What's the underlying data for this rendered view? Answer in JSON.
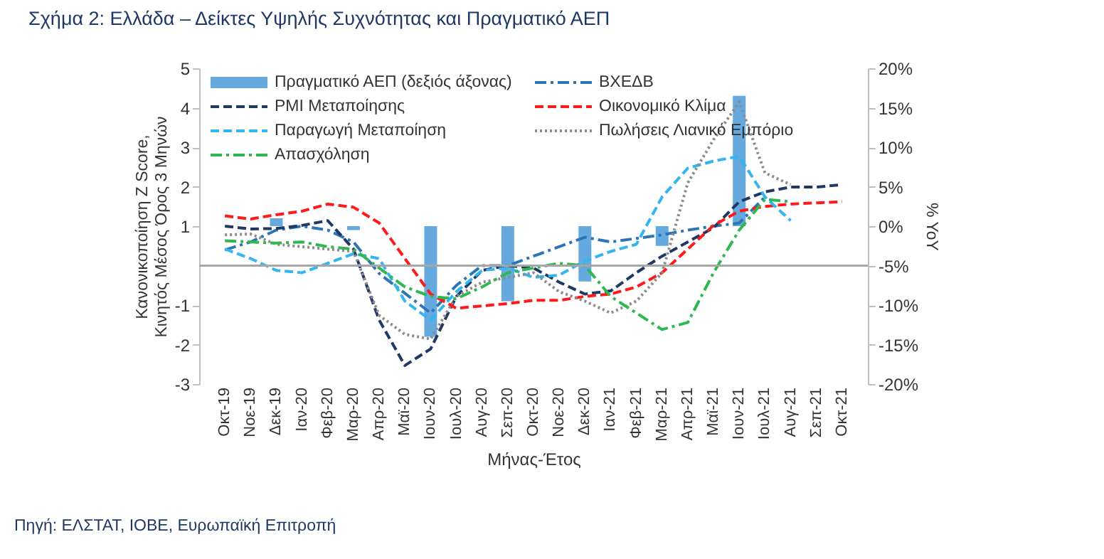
{
  "chart_data": {
    "type": "line",
    "title": "Σχήμα 2: Ελλάδα – Δείκτες Υψηλής Συχνότητας και Πραγματικό ΑΕΠ",
    "xlabel": "Μήνας-Έτος",
    "ylabel": "Κανονικοποίηση Z Score, Κινητός Μέσος Όρος 3 Μηνών",
    "y2label": "% YoY",
    "categories": [
      "Οκτ-19",
      "Νοε-19",
      "Δεκ-19",
      "Ιαν-20",
      "Φεβ-20",
      "Μαρ-20",
      "Απρ-20",
      "Μαϊ-20",
      "Ιουν-20",
      "Ιουλ-20",
      "Αυγ-20",
      "Σεπ-20",
      "Οκτ-20",
      "Νοε-20",
      "Δεκ-20",
      "Ιαν-21",
      "Φεβ-21",
      "Μαρ-21",
      "Απρ-21",
      "Μαϊ-21",
      "Ιουν-21",
      "Ιουλ-21",
      "Αυγ-21",
      "Σεπ-21",
      "Οκτ-21"
    ],
    "series": [
      {
        "name": "Πραγματικό ΑΕΠ (δεξιός άξονας)",
        "type": "bar",
        "axis": "y2",
        "color": "#4a9ad8",
        "values": [
          null,
          null,
          1,
          null,
          null,
          -0.5,
          null,
          null,
          -14,
          null,
          null,
          -9.5,
          null,
          null,
          -7,
          null,
          null,
          -2.5,
          null,
          null,
          16.5,
          null,
          null,
          null,
          null
        ]
      },
      {
        "name": "ΒΧΕΔΒ",
        "color": "#2e75b6",
        "line_style": "dashdot",
        "values": [
          0.4,
          0.6,
          0.9,
          1.0,
          0.9,
          0.6,
          -0.2,
          -0.7,
          -1.2,
          -0.5,
          0.0,
          0.0,
          0.24,
          0.48,
          0.72,
          0.6,
          0.69,
          0.78,
          0.9,
          1.0,
          1.08,
          1.74,
          null,
          null,
          null
        ]
      },
      {
        "name": "PMI Μεταποίησης",
        "color": "#1f3864",
        "line_style": "dashed",
        "values": [
          1.0,
          0.93,
          0.94,
          1.02,
          1.14,
          0.42,
          -1.38,
          -2.53,
          -2.11,
          -0.78,
          -0.12,
          0.0,
          -0.06,
          -0.42,
          -0.72,
          -0.64,
          -0.18,
          0.24,
          0.6,
          0.96,
          1.62,
          1.87,
          1.99,
          1.99,
          2.05
        ]
      },
      {
        "name": "Οικονομικό Κλίμα",
        "color": "#ff1a1a",
        "line_style": "dashed",
        "values": [
          1.26,
          1.18,
          1.29,
          1.38,
          1.56,
          1.48,
          1.08,
          0.18,
          -0.72,
          -1.08,
          -1.02,
          -0.96,
          -0.88,
          -0.88,
          -0.78,
          -0.72,
          -0.54,
          -0.18,
          0.42,
          1.02,
          1.38,
          1.5,
          1.56,
          1.59,
          1.62
        ]
      },
      {
        "name": "Παραγωγή Μεταποίηση",
        "color": "#33b5f0",
        "line_style": "dashed",
        "values": [
          0.42,
          0.18,
          -0.12,
          -0.18,
          0.06,
          0.3,
          0.18,
          -0.9,
          -1.38,
          -0.66,
          -0.12,
          -0.06,
          -0.3,
          -0.24,
          0.12,
          0.36,
          0.54,
          1.74,
          2.47,
          2.65,
          2.77,
          1.74,
          1.14,
          null,
          null
        ]
      },
      {
        "name": "Πωλήσεις Λιανικό Εμπόριο",
        "color": "#8c8c8c",
        "line_style": "dotted",
        "values": [
          0.78,
          0.8,
          0.54,
          0.48,
          0.42,
          0.36,
          -1.26,
          -1.74,
          -1.86,
          -0.78,
          -0.42,
          -0.3,
          -0.18,
          -0.66,
          -0.9,
          -1.2,
          -0.9,
          -0.18,
          2.1,
          3.19,
          4.15,
          2.35,
          2.05,
          null,
          null
        ]
      },
      {
        "name": "Απασχόληση",
        "color": "#2eb84f",
        "line_style": "dashdot",
        "values": [
          0.63,
          0.6,
          0.57,
          0.6,
          0.48,
          0.42,
          -0.06,
          -0.54,
          -0.78,
          -0.84,
          -0.54,
          -0.18,
          -0.06,
          0.06,
          0.0,
          -0.78,
          -1.2,
          -1.62,
          -1.44,
          -0.18,
          0.9,
          1.68,
          1.62,
          null,
          null
        ]
      }
    ],
    "ylim": [
      -3,
      5
    ],
    "yticks": [
      5,
      4,
      3,
      2,
      1,
      -1,
      -2,
      -3
    ],
    "y2lim": [
      -20,
      20
    ],
    "y2ticks": [
      {
        "value": 20,
        "label": "20%"
      },
      {
        "value": 15,
        "label": "15%"
      },
      {
        "value": 10,
        "label": "10%"
      },
      {
        "value": 5,
        "label": "5%"
      },
      {
        "value": 0,
        "label": "0%"
      },
      {
        "value": -5,
        "label": "-5%"
      },
      {
        "value": -10,
        "label": "-10%"
      },
      {
        "value": -15,
        "label": "-15%"
      },
      {
        "value": -20,
        "label": "-20%"
      }
    ],
    "ref_lines": [
      {
        "axis": "y",
        "value": 0,
        "color": "#a6a6a6"
      }
    ],
    "legend": "top left",
    "grid": false,
    "annotations": [
      "Πηγή: ΕΛΣΤΑΤ, ΙΟΒΕ, Ευρωπαϊκή Επιτροπή"
    ]
  }
}
